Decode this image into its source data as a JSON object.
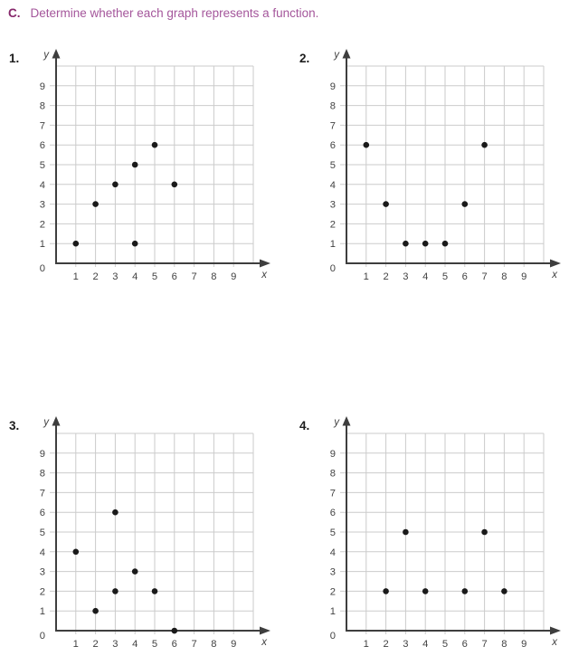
{
  "header": {
    "prefix": "C.",
    "title": "Determine whether each graph represents a function.",
    "prefix_color": "#86286b",
    "title_color": "#a4569b"
  },
  "style": {
    "grid_color": "#cbcbcb",
    "axis_color": "#3e3e3e",
    "point_color": "#1a1a1a",
    "tick_text_color": "#424242",
    "number_color": "#1d1d1d",
    "background": "#ffffff"
  },
  "chart_data": [
    {
      "number": "1.",
      "type": "scatter",
      "points": [
        [
          1,
          1
        ],
        [
          2,
          3
        ],
        [
          3,
          4
        ],
        [
          4,
          1
        ],
        [
          4,
          5
        ],
        [
          5,
          6
        ],
        [
          6,
          4
        ]
      ],
      "xlabel": "x",
      "ylabel": "y",
      "origin_label": "0",
      "xlim": [
        0,
        10
      ],
      "ylim": [
        0,
        10
      ],
      "xticks": [
        "1",
        "2",
        "3",
        "4",
        "5",
        "6",
        "7",
        "8",
        "9"
      ],
      "yticks": [
        "1",
        "2",
        "3",
        "4",
        "5",
        "6",
        "7",
        "8",
        "9"
      ],
      "grid": true,
      "legend": false
    },
    {
      "number": "2.",
      "type": "scatter",
      "points": [
        [
          1,
          6
        ],
        [
          2,
          3
        ],
        [
          3,
          1
        ],
        [
          4,
          1
        ],
        [
          5,
          1
        ],
        [
          6,
          3
        ],
        [
          7,
          6
        ]
      ],
      "xlabel": "x",
      "ylabel": "y",
      "origin_label": "0",
      "xlim": [
        0,
        10
      ],
      "ylim": [
        0,
        10
      ],
      "xticks": [
        "1",
        "2",
        "3",
        "4",
        "5",
        "6",
        "7",
        "8",
        "9"
      ],
      "yticks": [
        "1",
        "2",
        "3",
        "4",
        "5",
        "6",
        "7",
        "8",
        "9"
      ],
      "grid": true,
      "legend": false
    },
    {
      "number": "3.",
      "type": "scatter",
      "points": [
        [
          1,
          4
        ],
        [
          2,
          1
        ],
        [
          3,
          2
        ],
        [
          3,
          6
        ],
        [
          4,
          3
        ],
        [
          5,
          2
        ],
        [
          6,
          0
        ]
      ],
      "xlabel": "x",
      "ylabel": "y",
      "origin_label": "0",
      "xlim": [
        0,
        10
      ],
      "ylim": [
        0,
        10
      ],
      "xticks": [
        "1",
        "2",
        "3",
        "4",
        "5",
        "6",
        "7",
        "8",
        "9"
      ],
      "yticks": [
        "1",
        "2",
        "3",
        "4",
        "5",
        "6",
        "7",
        "8",
        "9"
      ],
      "grid": true,
      "legend": false
    },
    {
      "number": "4.",
      "type": "scatter",
      "points": [
        [
          2,
          2
        ],
        [
          3,
          5
        ],
        [
          4,
          2
        ],
        [
          6,
          2
        ],
        [
          7,
          5
        ],
        [
          8,
          2
        ]
      ],
      "xlabel": "x",
      "ylabel": "y",
      "origin_label": "0",
      "xlim": [
        0,
        10
      ],
      "ylim": [
        0,
        10
      ],
      "xticks": [
        "1",
        "2",
        "3",
        "4",
        "5",
        "6",
        "7",
        "8",
        "9"
      ],
      "yticks": [
        "1",
        "2",
        "3",
        "4",
        "5",
        "6",
        "7",
        "8",
        "9"
      ],
      "grid": true,
      "legend": false
    }
  ]
}
